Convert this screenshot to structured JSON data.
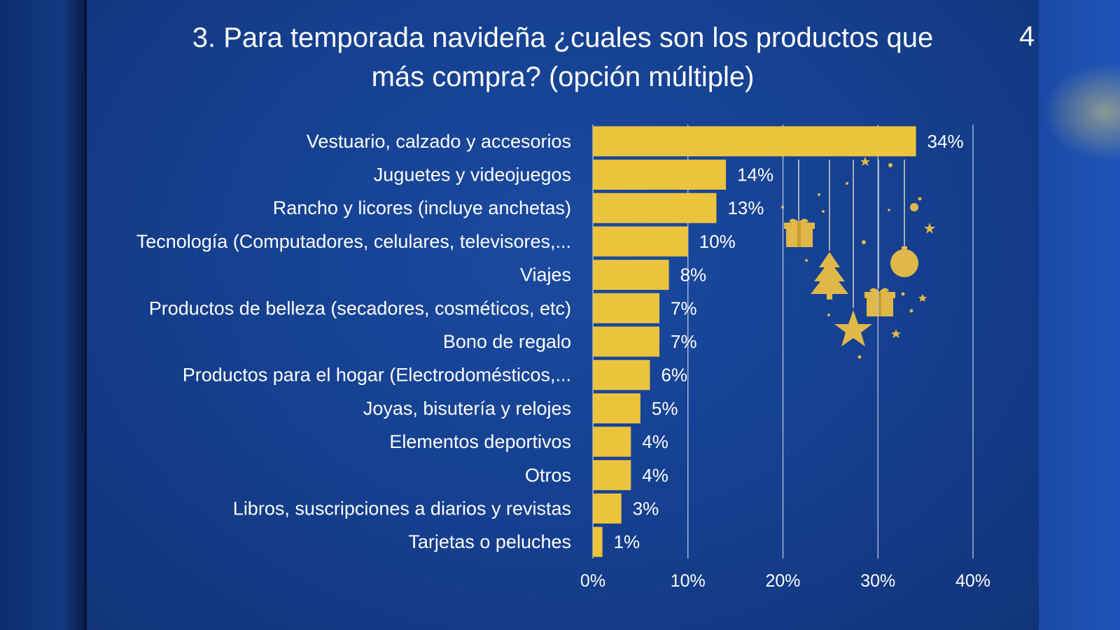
{
  "slide": {
    "title_line1": "3. Para temporada navideña ¿cuales son los productos que",
    "title_line2": "más compra? (opción múltiple)",
    "page_number": "4"
  },
  "colors": {
    "bar": "#ecc33d",
    "decoration": "#e0b84a",
    "grid": "#b8c6e0",
    "text": "#ffffff"
  },
  "chart_data": {
    "type": "bar",
    "orientation": "horizontal",
    "title": "3. Para temporada navideña ¿cuales son los productos que más compra? (opción múltiple)",
    "categories": [
      "Vestuario, calzado y accesorios",
      "Juguetes y videojuegos",
      "Rancho y licores (incluye anchetas)",
      "Tecnología (Computadores, celulares, televisores,...",
      "Viajes",
      "Productos de belleza (secadores, cosméticos, etc)",
      "Bono de regalo",
      "Productos para el hogar (Electrodomésticos,...",
      "Joyas, bisutería y relojes",
      "Elementos deportivos",
      "Otros",
      "Libros, suscripciones a diarios y revistas",
      "Tarjetas o peluches"
    ],
    "values": [
      34,
      14,
      13,
      10,
      8,
      7,
      7,
      6,
      5,
      4,
      4,
      3,
      1
    ],
    "value_labels": [
      "34%",
      "14%",
      "13%",
      "10%",
      "8%",
      "7%",
      "7%",
      "6%",
      "5%",
      "4%",
      "4%",
      "3%",
      "1%"
    ],
    "xlim": [
      0,
      40
    ],
    "xticks": [
      0,
      10,
      20,
      30,
      40
    ],
    "xtick_labels": [
      "0%",
      "10%",
      "20%",
      "30%",
      "40%"
    ],
    "grid": true,
    "xlabel": "",
    "ylabel": ""
  },
  "decorations": [
    "gift-box-icon",
    "christmas-tree-icon",
    "star-icon",
    "gift-box-icon",
    "ornament-ball-icon"
  ]
}
